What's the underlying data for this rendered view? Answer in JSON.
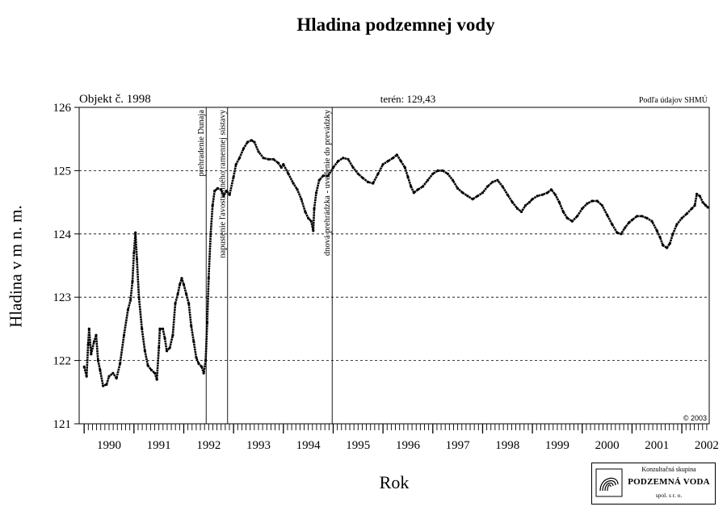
{
  "chart_data": {
    "type": "scatter",
    "title": "Hladina podzemnej vody",
    "xlabel": "Rok",
    "ylabel": "Hladina v m n. m.",
    "xlim": [
      1989.9,
      2002.55
    ],
    "ylim": [
      121,
      126
    ],
    "yticks": [
      121,
      122,
      123,
      124,
      125,
      126
    ],
    "xticks": [
      "1990",
      "1991",
      "1992",
      "1993",
      "1994",
      "1995",
      "1996",
      "1997",
      "1998",
      "1999",
      "2000",
      "2001",
      "2002"
    ],
    "grid": true,
    "header_left": "Objekt č. 1998",
    "header_center": "terén: 129,43",
    "header_right": "Podľa údajov SHMÚ",
    "copyright": "© 2003",
    "events": [
      {
        "x": 1992.45,
        "label": "prehradenie Dunaja"
      },
      {
        "x": 1992.88,
        "label": "napustenie ľavostranného ramennej sústavy"
      },
      {
        "x": 1994.98,
        "label": "dnová prehrádzka - uvedenie do prevádzky"
      }
    ],
    "series": [
      {
        "values": [
          [
            1990.0,
            121.9
          ],
          [
            1990.05,
            121.75
          ],
          [
            1990.08,
            122.25
          ],
          [
            1990.1,
            122.5
          ],
          [
            1990.14,
            122.1
          ],
          [
            1990.2,
            122.3
          ],
          [
            1990.24,
            122.4
          ],
          [
            1990.28,
            122.0
          ],
          [
            1990.32,
            121.85
          ],
          [
            1990.38,
            121.6
          ],
          [
            1990.45,
            121.62
          ],
          [
            1990.5,
            121.75
          ],
          [
            1990.58,
            121.8
          ],
          [
            1990.65,
            121.72
          ],
          [
            1990.72,
            121.95
          ],
          [
            1990.8,
            122.4
          ],
          [
            1990.88,
            122.8
          ],
          [
            1990.93,
            122.95
          ],
          [
            1990.97,
            123.25
          ],
          [
            1991.0,
            123.7
          ],
          [
            1991.03,
            124.02
          ],
          [
            1991.06,
            123.6
          ],
          [
            1991.1,
            123.0
          ],
          [
            1991.16,
            122.5
          ],
          [
            1991.22,
            122.15
          ],
          [
            1991.28,
            121.92
          ],
          [
            1991.35,
            121.85
          ],
          [
            1991.42,
            121.8
          ],
          [
            1991.46,
            121.7
          ],
          [
            1991.5,
            122.2
          ],
          [
            1991.52,
            122.5
          ],
          [
            1991.58,
            122.5
          ],
          [
            1991.62,
            122.35
          ],
          [
            1991.66,
            122.15
          ],
          [
            1991.72,
            122.2
          ],
          [
            1991.78,
            122.4
          ],
          [
            1991.83,
            122.9
          ],
          [
            1991.88,
            123.05
          ],
          [
            1991.92,
            123.2
          ],
          [
            1991.96,
            123.3
          ],
          [
            1992.0,
            123.2
          ],
          [
            1992.05,
            123.05
          ],
          [
            1992.1,
            122.9
          ],
          [
            1992.15,
            122.55
          ],
          [
            1992.2,
            122.3
          ],
          [
            1992.25,
            122.05
          ],
          [
            1992.3,
            121.95
          ],
          [
            1992.36,
            121.9
          ],
          [
            1992.4,
            121.8
          ],
          [
            1992.44,
            122.0
          ],
          [
            1992.47,
            122.6
          ],
          [
            1992.5,
            123.3
          ],
          [
            1992.54,
            124.0
          ],
          [
            1992.58,
            124.45
          ],
          [
            1992.62,
            124.68
          ],
          [
            1992.68,
            124.72
          ],
          [
            1992.75,
            124.7
          ],
          [
            1992.8,
            124.6
          ],
          [
            1992.86,
            124.68
          ],
          [
            1992.92,
            124.62
          ],
          [
            1993.0,
            124.9
          ],
          [
            1993.05,
            125.1
          ],
          [
            1993.12,
            125.2
          ],
          [
            1993.2,
            125.35
          ],
          [
            1993.28,
            125.45
          ],
          [
            1993.36,
            125.48
          ],
          [
            1993.42,
            125.45
          ],
          [
            1993.5,
            125.3
          ],
          [
            1993.6,
            125.2
          ],
          [
            1993.7,
            125.18
          ],
          [
            1993.8,
            125.18
          ],
          [
            1993.9,
            125.12
          ],
          [
            1993.96,
            125.05
          ],
          [
            1994.0,
            125.1
          ],
          [
            1994.1,
            124.95
          ],
          [
            1994.2,
            124.8
          ],
          [
            1994.28,
            124.7
          ],
          [
            1994.36,
            124.55
          ],
          [
            1994.44,
            124.35
          ],
          [
            1994.5,
            124.25
          ],
          [
            1994.56,
            124.2
          ],
          [
            1994.6,
            124.05
          ],
          [
            1994.62,
            124.4
          ],
          [
            1994.66,
            124.65
          ],
          [
            1994.72,
            124.85
          ],
          [
            1994.8,
            124.92
          ],
          [
            1994.9,
            124.92
          ],
          [
            1995.0,
            125.05
          ],
          [
            1995.1,
            125.15
          ],
          [
            1995.2,
            125.2
          ],
          [
            1995.3,
            125.18
          ],
          [
            1995.4,
            125.05
          ],
          [
            1995.5,
            124.95
          ],
          [
            1995.6,
            124.88
          ],
          [
            1995.7,
            124.82
          ],
          [
            1995.8,
            124.8
          ],
          [
            1995.9,
            124.95
          ],
          [
            1996.0,
            125.1
          ],
          [
            1996.1,
            125.15
          ],
          [
            1996.2,
            125.2
          ],
          [
            1996.28,
            125.25
          ],
          [
            1996.36,
            125.15
          ],
          [
            1996.44,
            125.05
          ],
          [
            1996.5,
            124.9
          ],
          [
            1996.56,
            124.75
          ],
          [
            1996.62,
            124.65
          ],
          [
            1996.7,
            124.7
          ],
          [
            1996.8,
            124.75
          ],
          [
            1996.9,
            124.85
          ],
          [
            1997.0,
            124.95
          ],
          [
            1997.1,
            125.0
          ],
          [
            1997.2,
            125.0
          ],
          [
            1997.3,
            124.95
          ],
          [
            1997.4,
            124.85
          ],
          [
            1997.5,
            124.72
          ],
          [
            1997.6,
            124.65
          ],
          [
            1997.7,
            124.6
          ],
          [
            1997.8,
            124.55
          ],
          [
            1997.9,
            124.6
          ],
          [
            1998.0,
            124.65
          ],
          [
            1998.1,
            124.75
          ],
          [
            1998.2,
            124.82
          ],
          [
            1998.3,
            124.85
          ],
          [
            1998.4,
            124.75
          ],
          [
            1998.5,
            124.62
          ],
          [
            1998.6,
            124.5
          ],
          [
            1998.7,
            124.4
          ],
          [
            1998.78,
            124.35
          ],
          [
            1998.86,
            124.45
          ],
          [
            1998.94,
            124.5
          ],
          [
            1999.0,
            124.55
          ],
          [
            1999.1,
            124.6
          ],
          [
            1999.2,
            124.62
          ],
          [
            1999.3,
            124.65
          ],
          [
            1999.38,
            124.7
          ],
          [
            1999.46,
            124.62
          ],
          [
            1999.54,
            124.5
          ],
          [
            1999.62,
            124.35
          ],
          [
            1999.7,
            124.25
          ],
          [
            1999.8,
            124.2
          ],
          [
            1999.9,
            124.28
          ],
          [
            2000.0,
            124.4
          ],
          [
            2000.1,
            124.48
          ],
          [
            2000.2,
            124.52
          ],
          [
            2000.3,
            124.52
          ],
          [
            2000.4,
            124.45
          ],
          [
            2000.5,
            124.3
          ],
          [
            2000.6,
            124.15
          ],
          [
            2000.7,
            124.02
          ],
          [
            2000.78,
            124.0
          ],
          [
            2000.86,
            124.1
          ],
          [
            2000.94,
            124.18
          ],
          [
            2001.0,
            124.22
          ],
          [
            2001.1,
            124.28
          ],
          [
            2001.2,
            124.28
          ],
          [
            2001.3,
            124.25
          ],
          [
            2001.4,
            124.2
          ],
          [
            2001.5,
            124.05
          ],
          [
            2001.56,
            123.95
          ],
          [
            2001.62,
            123.82
          ],
          [
            2001.7,
            123.78
          ],
          [
            2001.76,
            123.85
          ],
          [
            2001.82,
            124.0
          ],
          [
            2001.9,
            124.15
          ],
          [
            2002.0,
            124.25
          ],
          [
            2002.1,
            124.32
          ],
          [
            2002.2,
            124.4
          ],
          [
            2002.26,
            124.45
          ],
          [
            2002.3,
            124.63
          ],
          [
            2002.36,
            124.6
          ],
          [
            2002.42,
            124.5
          ],
          [
            2002.48,
            124.45
          ],
          [
            2002.52,
            124.42
          ]
        ]
      }
    ]
  },
  "logo": {
    "line1": "Konzultačná skupina",
    "line2": "PODZEMNÁ VODA",
    "line3": "spol. s r. o."
  }
}
